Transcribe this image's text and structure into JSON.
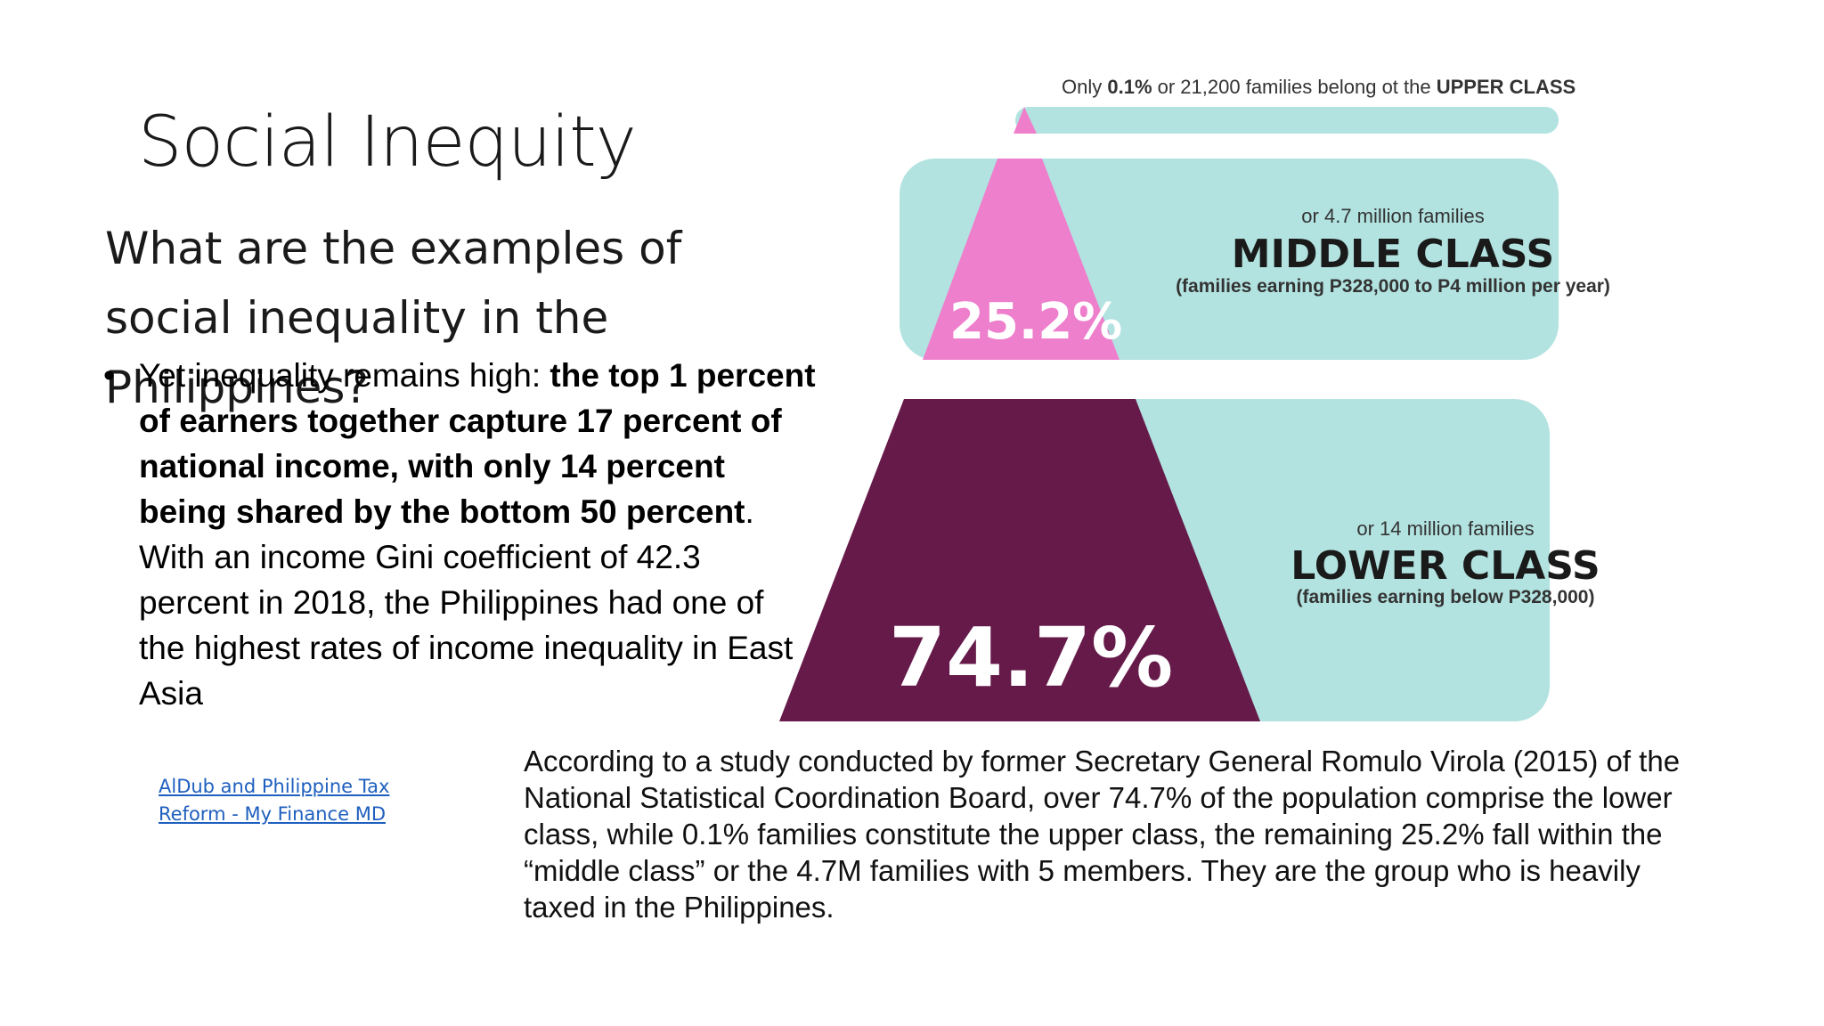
{
  "slide": {
    "title": "Social Inequity",
    "question": "What are the examples of social inequality in the Philippines?",
    "bullet": {
      "bullet_char": "•",
      "text_before": "Yet inequality remains high: ",
      "bold_text": "the top 1 percent of earners together capture 17 percent of national income, with only 14 percent being shared by the bottom 50 percent",
      "text_after": ". With an income Gini coefficient of 42.3 percent in 2018, the Philippines had one of the highest rates of income inequality in East Asia"
    },
    "link_text": "AlDub and Philippine Tax Reform - My Finance MD",
    "study_text": "According to a study conducted by former Secretary General Romulo Virola (2015) of the National Statistical Coordination Board, over 74.7% of the population comprise the lower class, while 0.1% families constitute the upper class, the remaining 25.2% fall within the “middle class” or the 4.7M families with 5 members. They are the group who is heavily taxed in the Philippines."
  },
  "infographic": {
    "upper": {
      "caption_prefix": "Only ",
      "caption_bold_pct": "0.1%",
      "caption_middle": " or 21,200 families belong ot the ",
      "caption_bold_class": "UPPER CLASS",
      "share_pct": 0.1,
      "color": "#f07fcb"
    },
    "middle": {
      "families": "or 4.7 million families",
      "class_label": "MIDDLE CLASS",
      "income": "(families earning P328,000 to P4 million per year)",
      "pct_label": "25.2%",
      "share_pct": 25.2,
      "color": "#ee7fcc"
    },
    "lower": {
      "families": "or 14 million families",
      "class_label": "LOWER CLASS",
      "income": "(families earning below P328,000)",
      "pct_label": "74.7%",
      "share_pct": 74.7,
      "color": "#661a4a"
    },
    "panel_color": "#b2e3e0"
  }
}
